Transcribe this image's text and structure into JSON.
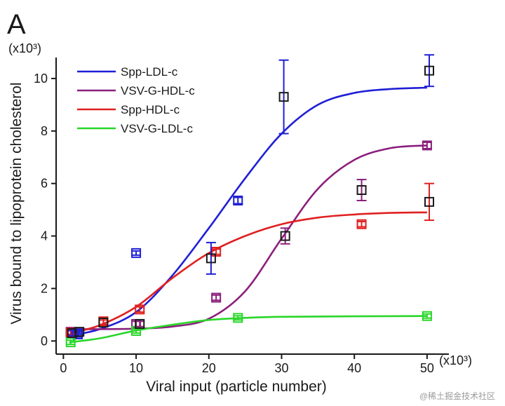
{
  "panel_label": "A",
  "watermark": "@稀土掘金技术社区",
  "chart_data": {
    "type": "scatter",
    "xlabel": "Viral input (particle number)",
    "ylabel": "Virus bound to lipoprotein cholesterol",
    "x_multiplier": "(x10³)",
    "y_multiplier": "(x10³)",
    "xlim": [
      -1,
      53
    ],
    "ylim": [
      -0.5,
      10.8
    ],
    "x_ticks": [
      0,
      10,
      20,
      30,
      40,
      50
    ],
    "y_ticks": [
      0,
      2,
      4,
      6,
      8,
      10
    ],
    "grid": false,
    "legend_position": "top-left",
    "series": [
      {
        "name": "Spp-LDL-c",
        "color": "#1f1fd6",
        "curve": [
          [
            1,
            0.22
          ],
          [
            5,
            0.45
          ],
          [
            10,
            1.1
          ],
          [
            15,
            2.5
          ],
          [
            20,
            4.3
          ],
          [
            25,
            6.2
          ],
          [
            30,
            7.9
          ],
          [
            35,
            9.0
          ],
          [
            40,
            9.45
          ],
          [
            45,
            9.6
          ],
          [
            50,
            9.65
          ]
        ],
        "points": [
          {
            "x": 1,
            "y": 0.3,
            "err": 0.1
          },
          {
            "x": 2,
            "y": 0.25,
            "err": 0.1
          },
          {
            "x": 10,
            "y": 3.35,
            "err": 0.08
          },
          {
            "x": 24,
            "y": 5.35,
            "err": 0.12
          }
        ]
      },
      {
        "name": "VSV-G-HDL-c",
        "color": "#8b1f7d",
        "curve": [
          [
            1,
            0.45
          ],
          [
            5,
            0.45
          ],
          [
            10,
            0.47
          ],
          [
            15,
            0.55
          ],
          [
            20,
            0.85
          ],
          [
            25,
            1.9
          ],
          [
            30,
            3.9
          ],
          [
            35,
            5.8
          ],
          [
            40,
            6.9
          ],
          [
            45,
            7.35
          ],
          [
            50,
            7.45
          ]
        ],
        "points": [
          {
            "x": 1,
            "y": 0.35,
            "err": 0.1
          },
          {
            "x": 10,
            "y": 0.65,
            "err": 0.1
          },
          {
            "x": 21,
            "y": 1.65,
            "err": 0.1
          },
          {
            "x": 50,
            "y": 7.45,
            "err": 0.12
          }
        ]
      },
      {
        "name": "Spp-HDL-c",
        "color": "#e02020",
        "curve": [
          [
            1,
            0.3
          ],
          [
            5,
            0.6
          ],
          [
            10,
            1.3
          ],
          [
            15,
            2.4
          ],
          [
            20,
            3.35
          ],
          [
            25,
            4.0
          ],
          [
            30,
            4.45
          ],
          [
            35,
            4.7
          ],
          [
            40,
            4.82
          ],
          [
            45,
            4.88
          ],
          [
            50,
            4.9
          ]
        ],
        "points": [
          {
            "x": 1,
            "y": 0.32,
            "err": 0.1
          },
          {
            "x": 5.5,
            "y": 0.75,
            "err": 0.12
          },
          {
            "x": 10.5,
            "y": 1.2,
            "err": 0.1
          },
          {
            "x": 21,
            "y": 3.4,
            "err": 0.1
          },
          {
            "x": 41,
            "y": 4.45,
            "err": 0.1
          }
        ]
      },
      {
        "name": "VSV-G-LDL-c",
        "color": "#2ad62a",
        "curve": [
          [
            0.8,
            -0.05
          ],
          [
            5,
            0.1
          ],
          [
            10,
            0.4
          ],
          [
            15,
            0.62
          ],
          [
            20,
            0.8
          ],
          [
            25,
            0.88
          ],
          [
            30,
            0.92
          ],
          [
            40,
            0.94
          ],
          [
            50,
            0.95
          ]
        ],
        "points": [
          {
            "x": 1,
            "y": -0.05,
            "err": 0.08
          },
          {
            "x": 10,
            "y": 0.38,
            "err": 0.08
          },
          {
            "x": 24,
            "y": 0.88,
            "err": 0.08
          },
          {
            "x": 50,
            "y": 0.95,
            "err": 0.08
          }
        ]
      }
    ],
    "black_markers": [
      {
        "x": 1.2,
        "y": 0.3,
        "err": 0.1,
        "bar_color": "#1f1fd6"
      },
      {
        "x": 2.2,
        "y": 0.35,
        "err": 0.1,
        "bar_color": "#1f1fd6"
      },
      {
        "x": 5.5,
        "y": 0.7,
        "err": 0.1,
        "bar_color": "#e02020"
      },
      {
        "x": 10.5,
        "y": 0.65,
        "err": 0.1,
        "bar_color": "#8b1f7d"
      },
      {
        "x": 20.3,
        "y": 3.15,
        "err": 0.6,
        "bar_color": "#1f1fd6"
      },
      {
        "x": 30.3,
        "y": 9.3,
        "err": 1.4,
        "bar_color": "#1f1fd6"
      },
      {
        "x": 30.5,
        "y": 4.0,
        "err": 0.3,
        "bar_color": "#8b1f7d"
      },
      {
        "x": 41,
        "y": 5.75,
        "err": 0.4,
        "bar_color": "#8b1f7d"
      },
      {
        "x": 50.3,
        "y": 10.3,
        "err": 0.6,
        "bar_color": "#1f1fd6"
      },
      {
        "x": 50.3,
        "y": 5.3,
        "err": 0.7,
        "bar_color": "#e02020"
      }
    ]
  }
}
